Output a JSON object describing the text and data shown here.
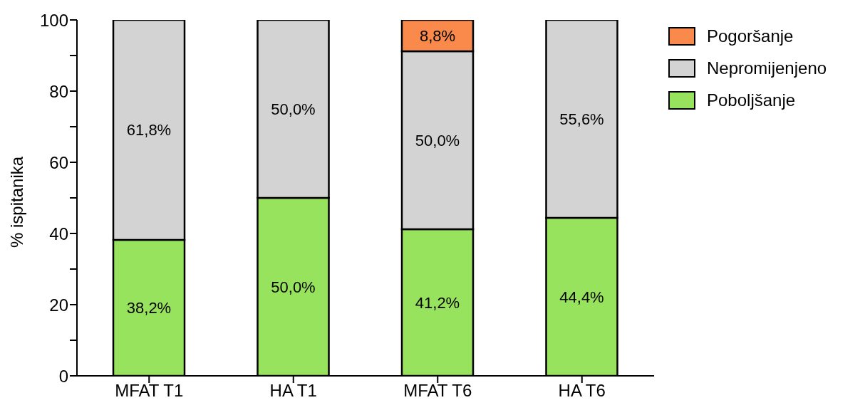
{
  "chart_data": {
    "type": "bar",
    "stacked": true,
    "ylabel": "% ispitanika",
    "categories": [
      "MFAT T1",
      "HA T1",
      "MFAT T6",
      "HA T6"
    ],
    "series": [
      {
        "name": "Poboljšanje",
        "color": "#97e35e",
        "values": [
          38.2,
          50.0,
          41.2,
          44.4
        ],
        "value_labels": [
          "38,2%",
          "50,0%",
          "41,2%",
          "44,4%"
        ]
      },
      {
        "name": "Nepromijenjeno",
        "color": "#d3d3d3",
        "values": [
          61.8,
          50.0,
          50.0,
          55.6
        ],
        "value_labels": [
          "61,8%",
          "50,0%",
          "50,0%",
          "55,6%"
        ]
      },
      {
        "name": "Pogoršanje",
        "color": "#f98a4b",
        "values": [
          null,
          null,
          8.8,
          null
        ],
        "value_labels": [
          null,
          null,
          "8,8%",
          null
        ]
      }
    ],
    "ylim": [
      0,
      100
    ],
    "yticks": [
      0,
      {
        "value": 10,
        "label": null
      },
      20,
      {
        "value": 30,
        "label": null
      },
      40,
      {
        "value": 50,
        "label": null
      },
      60,
      {
        "value": 70,
        "label": null
      },
      80,
      {
        "value": 90,
        "label": null
      },
      100
    ],
    "grid": false,
    "legend": "right"
  }
}
